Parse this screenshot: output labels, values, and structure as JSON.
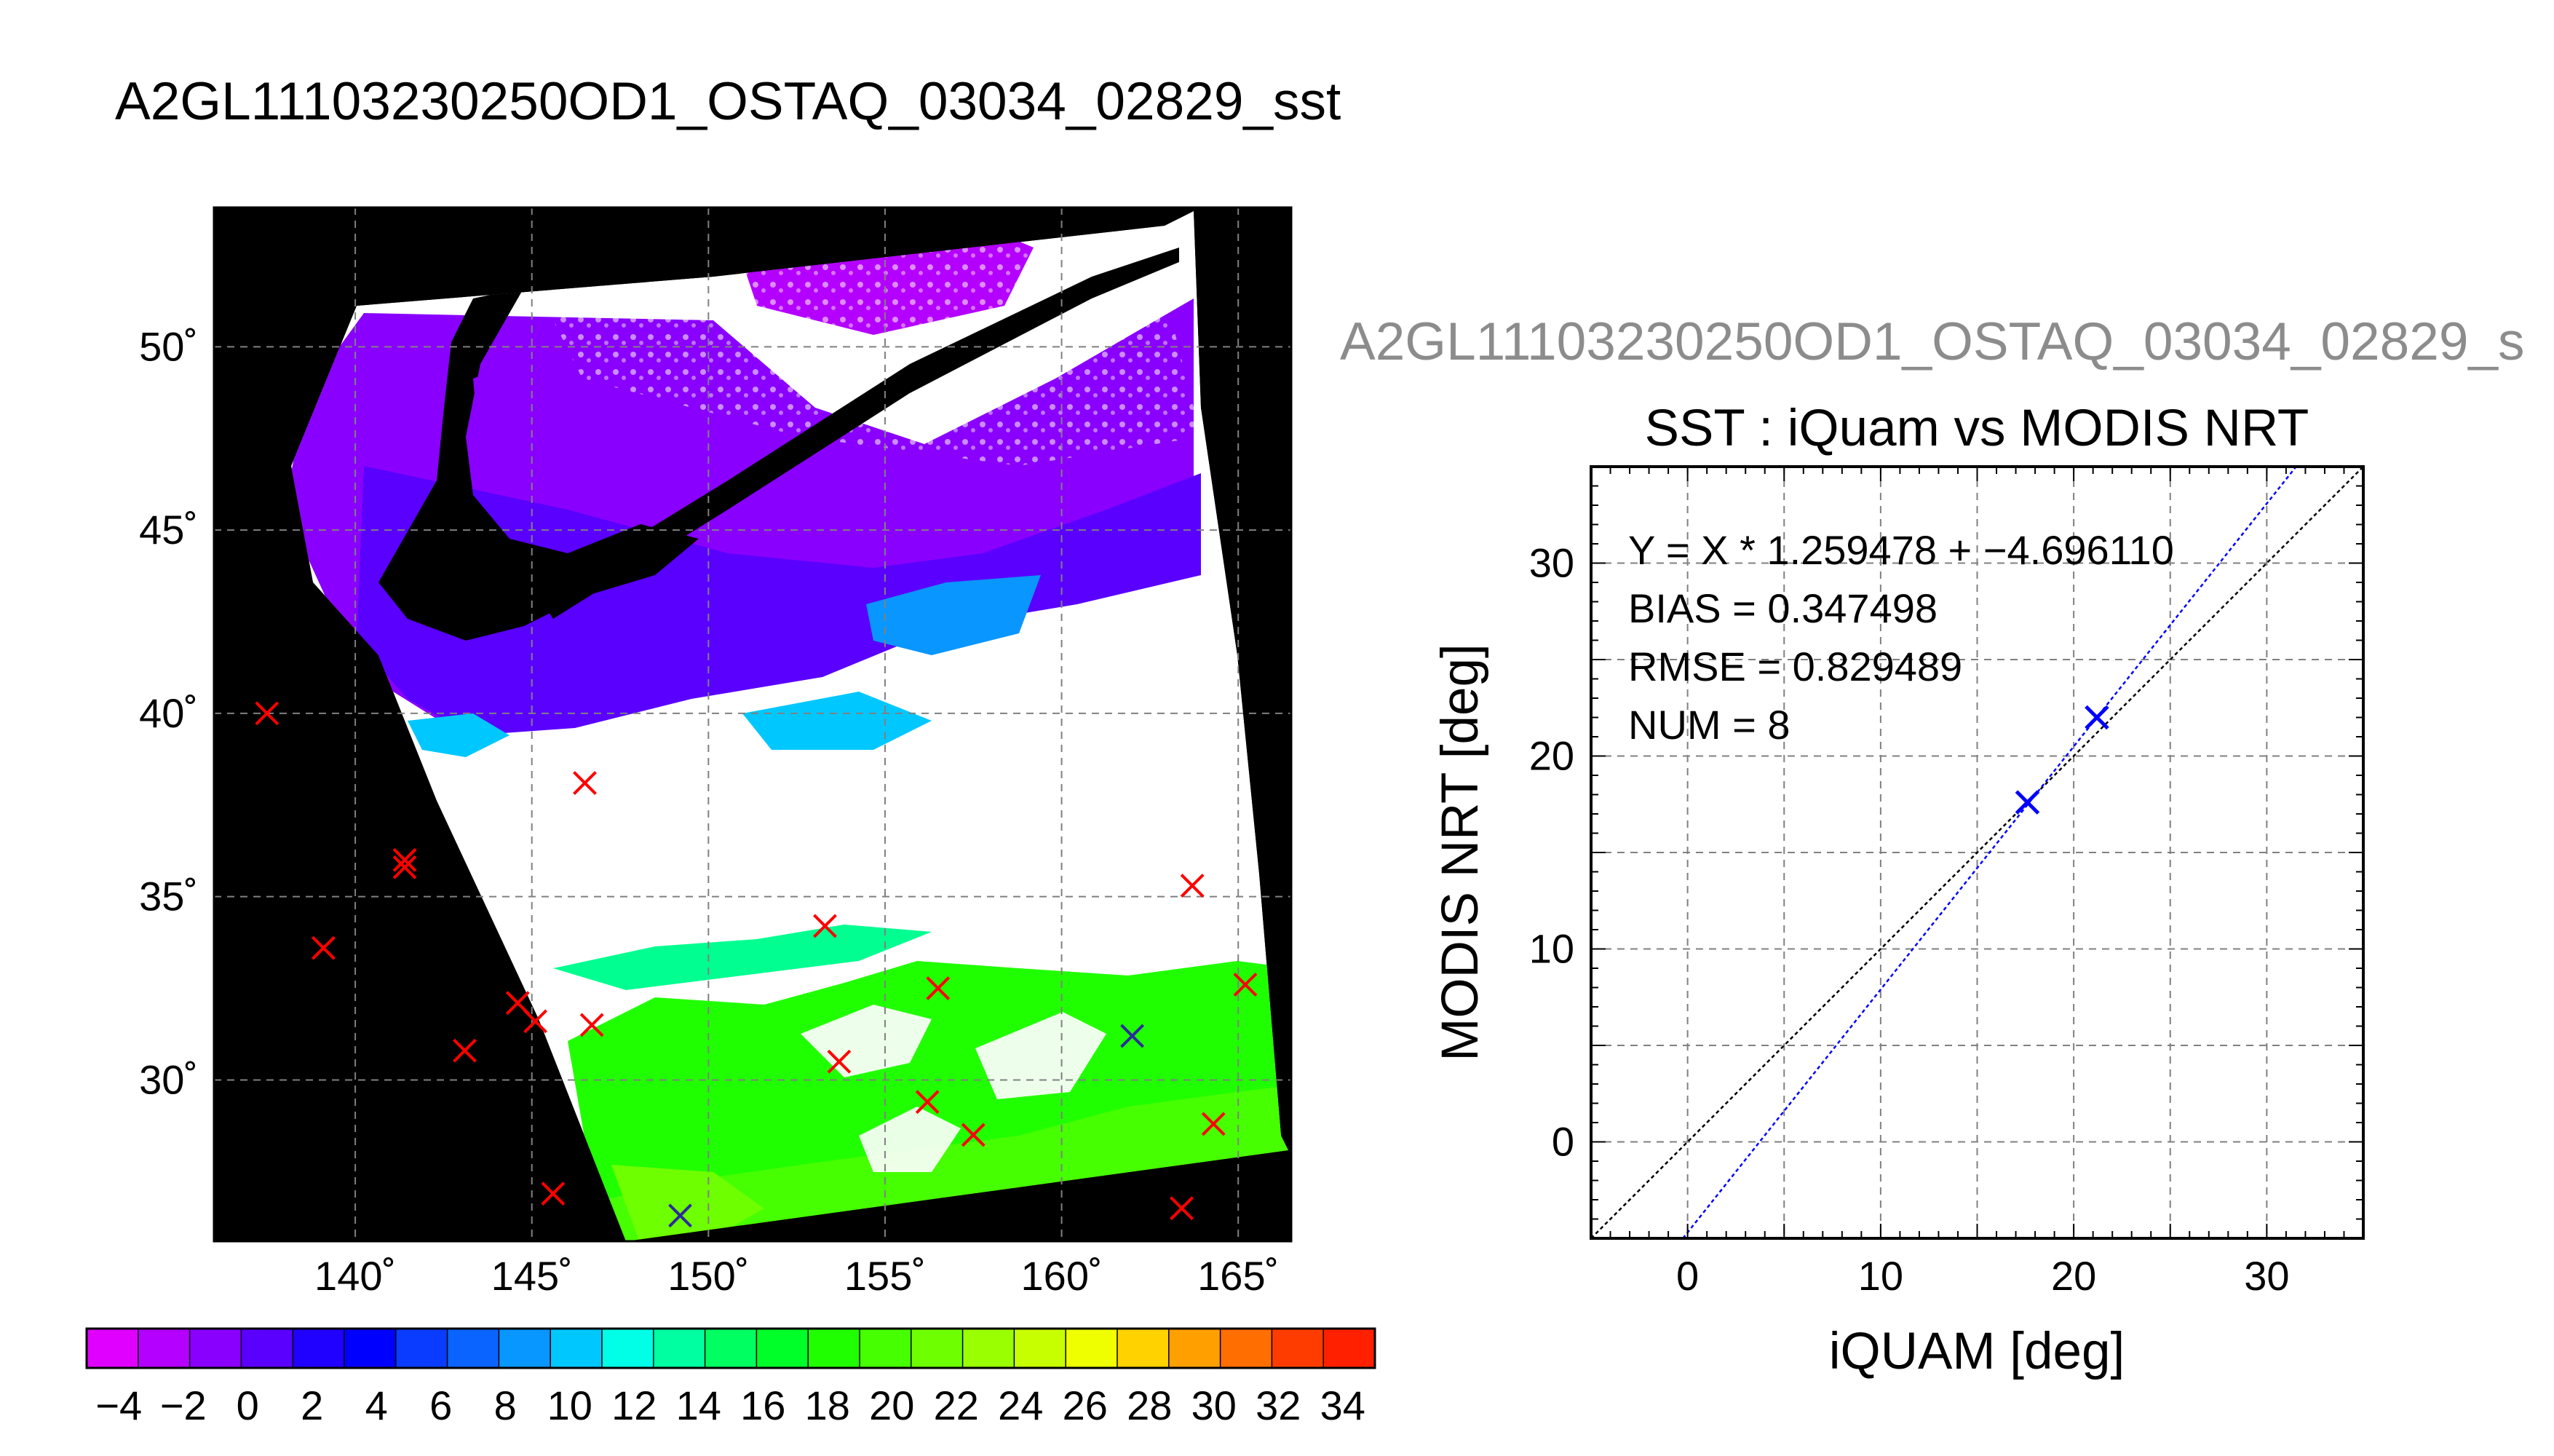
{
  "page_title": "A2GL11103230250OD1_OSTAQ_03034_02829_sst",
  "scatter_header": "A2GL11103230250OD1_OSTAQ_03034_02829_s",
  "chart_data": [
    {
      "type": "scatter",
      "title": "A2GL11103230250OD1_OSTAQ_03034_02829_sst",
      "xlabel": "",
      "ylabel": "",
      "x_ticks": [
        "140˚",
        "145˚",
        "150˚",
        "155˚",
        "160˚",
        "165˚"
      ],
      "x_tick_values": [
        140,
        145,
        150,
        155,
        160,
        165
      ],
      "y_ticks": [
        "30˚",
        "35˚",
        "40˚",
        "45˚",
        "50˚"
      ],
      "y_tick_values": [
        30,
        35,
        40,
        45,
        50
      ],
      "xlim": [
        136,
        166.5
      ],
      "ylim": [
        25.6,
        53.8
      ],
      "grid": true,
      "series": [
        {
          "color": "#ff0000",
          "points": [
            {
              "x": 137.5,
              "y": 40.0
            },
            {
              "x": 146.5,
              "y": 38.1
            },
            {
              "x": 141.4,
              "y": 36.0
            },
            {
              "x": 141.4,
              "y": 35.8
            },
            {
              "x": 163.7,
              "y": 35.3
            },
            {
              "x": 139.1,
              "y": 33.6
            },
            {
              "x": 153.3,
              "y": 34.2
            },
            {
              "x": 165.2,
              "y": 32.6
            },
            {
              "x": 156.5,
              "y": 32.5
            },
            {
              "x": 144.6,
              "y": 32.1
            },
            {
              "x": 145.1,
              "y": 31.6
            },
            {
              "x": 146.7,
              "y": 31.5
            },
            {
              "x": 143.1,
              "y": 30.8
            },
            {
              "x": 153.7,
              "y": 30.5
            },
            {
              "x": 156.2,
              "y": 29.4
            },
            {
              "x": 164.3,
              "y": 28.8
            },
            {
              "x": 157.5,
              "y": 28.5
            },
            {
              "x": 145.6,
              "y": 26.9
            },
            {
              "x": 163.4,
              "y": 26.5
            }
          ]
        },
        {
          "color": "#2b2b9a",
          "points": [
            {
              "x": 162.0,
              "y": 31.2
            },
            {
              "x": 149.2,
              "y": 26.3
            }
          ]
        }
      ]
    },
    {
      "type": "heatmap",
      "title": "",
      "colorbar_ticks": [
        "−4",
        "−2",
        "0",
        "2",
        "4",
        "6",
        "8",
        "10",
        "12",
        "14",
        "16",
        "18",
        "20",
        "22",
        "24",
        "26",
        "28",
        "30",
        "32",
        "34"
      ],
      "colorbar_range": [
        -5,
        35
      ],
      "colors": [
        "#e000ff",
        "#b400ff",
        "#8a00ff",
        "#5a00ff",
        "#2000ff",
        "#0000ff",
        "#0a3cff",
        "#0a64ff",
        "#0896ff",
        "#00c8ff",
        "#00ffe6",
        "#00ffa0",
        "#00ff60",
        "#00ff28",
        "#20ff00",
        "#46ff00",
        "#6eff00",
        "#9aff00",
        "#c8ff00",
        "#f0ff00",
        "#ffd200",
        "#ffa000",
        "#ff6e00",
        "#ff3c00",
        "#ff2000"
      ]
    },
    {
      "type": "scatter",
      "title": "SST : iQuam vs MODIS NRT",
      "xlabel": "iQUAM [deg]",
      "ylabel": "MODIS NRT [deg]",
      "x_ticks": [
        "0",
        "10",
        "20",
        "30"
      ],
      "x_tick_values": [
        0,
        10,
        20,
        30
      ],
      "y_ticks": [
        "0",
        "10",
        "20",
        "30"
      ],
      "y_tick_values": [
        0,
        10,
        20,
        30
      ],
      "xlim": [
        -5,
        35
      ],
      "ylim": [
        -5,
        35
      ],
      "grid": true,
      "annotations": [
        "Y = X * 1.259478 + −4.696110",
        "BIAS = 0.347498",
        "RMSE = 0.829489",
        "NUM = 8"
      ],
      "fit_line": {
        "slope": 1.259478,
        "intercept": -4.69611,
        "color": "#0000ff"
      },
      "identity_line": {
        "color": "#000000"
      },
      "series": [
        {
          "color": "#0000ff",
          "points": [
            {
              "x": 17.6,
              "y": 17.6
            },
            {
              "x": 21.2,
              "y": 22.0
            }
          ]
        }
      ]
    }
  ]
}
